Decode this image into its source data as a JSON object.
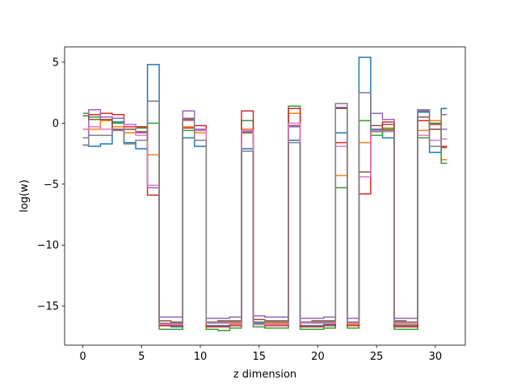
{
  "chart_data": {
    "type": "line",
    "step": "mid",
    "xlabel": "z dimension",
    "ylabel": "log(w)",
    "xlim": [
      -1.55,
      32.55
    ],
    "ylim": [
      -18.2,
      6.25
    ],
    "xticks": [
      0,
      5,
      10,
      15,
      20,
      25,
      30
    ],
    "yticks": [
      5,
      0,
      -5,
      -10,
      -15
    ],
    "ytick_labels": [
      "5",
      "0",
      "−5",
      "−10",
      "−15"
    ],
    "x": [
      0,
      1,
      2,
      3,
      4,
      5,
      6,
      7,
      8,
      9,
      10,
      11,
      12,
      13,
      14,
      15,
      16,
      17,
      18,
      19,
      20,
      21,
      22,
      23,
      24,
      25,
      26,
      27,
      28,
      29,
      30,
      31
    ],
    "series": [
      {
        "color": "#1f77b4",
        "values": [
          -1.8,
          -1.9,
          -1.7,
          0.1,
          -1.6,
          -2.1,
          4.8,
          -16.6,
          -16.7,
          -1.2,
          -1.9,
          -16.6,
          -16.6,
          -16.5,
          -2.1,
          -16.4,
          -16.5,
          -16.5,
          -1.4,
          -16.6,
          -16.6,
          -16.5,
          -0.8,
          -16.4,
          5.4,
          -0.5,
          -1.2,
          -16.6,
          -16.6,
          0.9,
          -2.4,
          1.2
        ]
      },
      {
        "color": "#ff7f0e",
        "values": [
          -0.5,
          -0.5,
          0.2,
          -0.3,
          -0.8,
          -0.3,
          -2.6,
          -16.4,
          -16.4,
          -0.3,
          -0.8,
          -16.4,
          -16.4,
          -16.4,
          -0.5,
          -16.3,
          -16.4,
          -16.4,
          0.8,
          -16.3,
          -16.4,
          -16.4,
          -4.3,
          -16.5,
          -1.6,
          -0.6,
          -0.4,
          -16.5,
          -16.5,
          -0.6,
          0.2,
          -3.0
        ]
      },
      {
        "color": "#2ca02c",
        "values": [
          0.8,
          0.5,
          0.3,
          0.0,
          -0.5,
          -0.4,
          0.0,
          -16.9,
          -16.9,
          -0.6,
          -0.6,
          -16.9,
          -17.0,
          -16.8,
          0.2,
          -16.7,
          -16.8,
          -16.8,
          1.4,
          -16.9,
          -16.9,
          -16.8,
          -5.3,
          -16.8,
          0.2,
          -1.0,
          -0.5,
          -16.9,
          -16.9,
          -1.2,
          0.0,
          -3.3
        ]
      },
      {
        "color": "#d62728",
        "values": [
          0.6,
          0.7,
          0.8,
          0.7,
          -0.3,
          -0.3,
          -5.9,
          -16.6,
          -16.6,
          -0.4,
          -0.2,
          -16.7,
          -16.7,
          -16.6,
          1.0,
          -16.5,
          -16.6,
          -16.6,
          1.2,
          -16.7,
          -16.7,
          -16.6,
          -1.6,
          -16.6,
          -5.8,
          -0.6,
          0.1,
          -16.7,
          -16.7,
          0.2,
          -0.1,
          -1.9
        ]
      },
      {
        "color": "#9467bd",
        "values": [
          -1.2,
          1.1,
          0.5,
          0.4,
          -0.1,
          -0.8,
          -5.3,
          -15.9,
          -15.9,
          1.0,
          -0.5,
          -16.0,
          -16.0,
          -15.9,
          -0.7,
          -15.8,
          -15.9,
          -15.9,
          -0.3,
          -16.0,
          -16.0,
          -15.9,
          1.3,
          -16.0,
          -4.4,
          0.8,
          0.3,
          -16.0,
          -16.0,
          1.0,
          -0.5,
          -0.5
        ]
      },
      {
        "color": "#8c564b",
        "values": [
          0.6,
          0.3,
          0.3,
          -0.5,
          -0.5,
          -0.7,
          -5.1,
          -16.2,
          -16.3,
          0.3,
          -0.6,
          -16.3,
          -16.2,
          -16.2,
          -0.8,
          -16.1,
          -16.2,
          -16.2,
          -0.2,
          -16.3,
          -16.2,
          -16.2,
          1.2,
          -16.3,
          -4.0,
          -0.2,
          -0.1,
          -16.2,
          -16.3,
          0.5,
          -0.5,
          -2.0
        ]
      },
      {
        "color": "#e377c2",
        "values": [
          -0.5,
          -0.3,
          -0.5,
          -0.6,
          -0.1,
          -1.0,
          -5.1,
          -16.5,
          -16.5,
          0.2,
          -0.6,
          -16.4,
          -16.4,
          -16.5,
          -0.6,
          -16.5,
          -16.5,
          -16.5,
          0.0,
          -16.4,
          -16.4,
          -16.4,
          -1.9,
          -16.4,
          -4.4,
          -0.6,
          -0.7,
          -16.4,
          -16.4,
          -1.0,
          -1.4,
          -1.3
        ]
      },
      {
        "color": "#7f7f7f",
        "values": [
          -1.8,
          -1.0,
          -1.0,
          -0.6,
          -1.7,
          -1.4,
          1.8,
          -16.4,
          -16.4,
          0.4,
          -1.4,
          -16.3,
          -16.3,
          -16.3,
          -2.3,
          -16.3,
          -16.3,
          -16.3,
          -1.6,
          -16.3,
          -16.3,
          -16.3,
          1.6,
          -16.3,
          2.5,
          -0.7,
          -0.6,
          -16.3,
          -16.3,
          1.1,
          -1.9,
          0.7
        ]
      }
    ]
  }
}
